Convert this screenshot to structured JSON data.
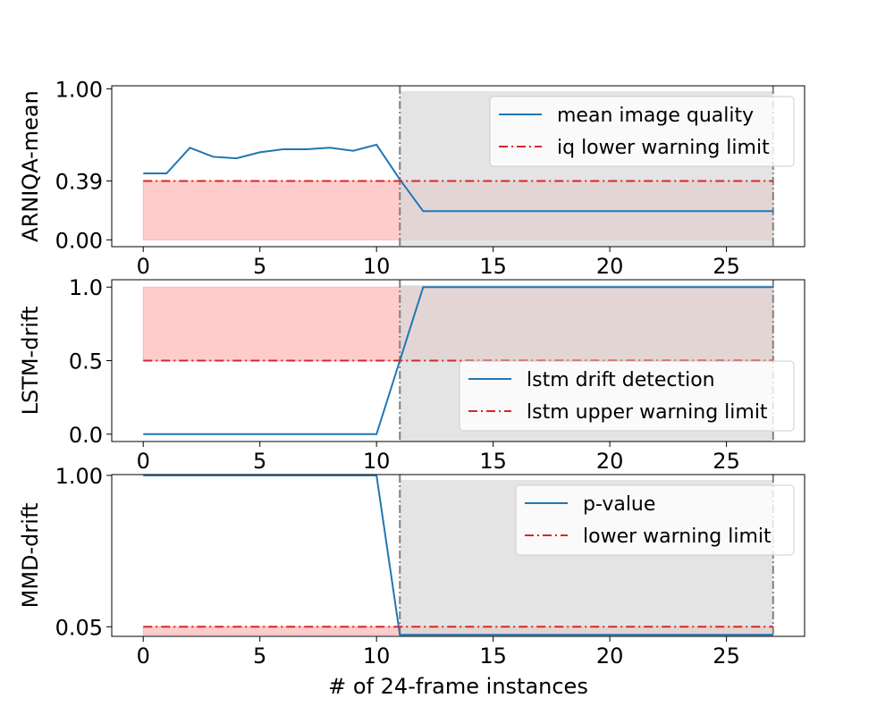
{
  "figure": {
    "xlabel": "# of 24-frame instances",
    "colors": {
      "series": "#1f77b4",
      "limit": "#d62728",
      "limit_fill": "#ff9999",
      "window_fill": "#d9d9d9",
      "vline": "#808080",
      "legend_edge": "#cccccc"
    }
  },
  "chart_data": [
    {
      "type": "line",
      "ylabel": "ARNIQA-mean",
      "xlim": [
        -1.35,
        28.35
      ],
      "ylim": [
        -0.045,
        1.02
      ],
      "xticks": [
        0,
        5,
        10,
        15,
        20,
        25
      ],
      "xtick_labels": [
        "0",
        "5",
        "10",
        "15",
        "20",
        "25"
      ],
      "yticks": [
        0.0,
        0.39,
        1.0
      ],
      "ytick_labels": [
        "0.00",
        "0.39",
        "1.00"
      ],
      "grid": false,
      "legend_placement": "top-right",
      "limit_fill": {
        "x_start": 0,
        "x_end": 27,
        "y_low": 0.0,
        "y_high": 0.39
      },
      "alert_window": {
        "x_start": 11,
        "x_end": 27
      },
      "series": [
        {
          "name": "mean image quality",
          "style": "solid",
          "x": [
            0,
            1,
            2,
            3,
            4,
            5,
            6,
            7,
            8,
            9,
            10,
            11,
            12,
            13,
            14,
            15,
            16,
            17,
            18,
            19,
            20,
            21,
            22,
            23,
            24,
            25,
            26,
            27
          ],
          "y": [
            0.44,
            0.44,
            0.61,
            0.55,
            0.54,
            0.58,
            0.6,
            0.6,
            0.61,
            0.59,
            0.63,
            0.4,
            0.19,
            0.19,
            0.19,
            0.19,
            0.19,
            0.19,
            0.19,
            0.19,
            0.19,
            0.19,
            0.19,
            0.19,
            0.19,
            0.19,
            0.19,
            0.19
          ]
        },
        {
          "name": "iq lower warning limit",
          "style": "dashdot",
          "x": [
            0,
            27
          ],
          "y": [
            0.39,
            0.39
          ]
        }
      ]
    },
    {
      "type": "line",
      "ylabel": "LSTM-drift",
      "xlim": [
        -1.35,
        28.35
      ],
      "ylim": [
        -0.05,
        1.05
      ],
      "xticks": [
        0,
        5,
        10,
        15,
        20,
        25
      ],
      "xtick_labels": [
        "0",
        "5",
        "10",
        "15",
        "20",
        "25"
      ],
      "yticks": [
        0.0,
        0.5,
        1.0
      ],
      "ytick_labels": [
        "0.0",
        "0.5",
        "1.0"
      ],
      "grid": false,
      "legend_placement": "lower-right",
      "limit_fill": {
        "x_start": 0,
        "x_end": 27,
        "y_low": 0.5,
        "y_high": 1.0
      },
      "alert_window": {
        "x_start": 11,
        "x_end": 27
      },
      "series": [
        {
          "name": "lstm drift detection",
          "style": "solid",
          "x": [
            0,
            1,
            2,
            3,
            4,
            5,
            6,
            7,
            8,
            9,
            10,
            11,
            12,
            13,
            14,
            15,
            16,
            17,
            18,
            19,
            20,
            21,
            22,
            23,
            24,
            25,
            26,
            27
          ],
          "y": [
            0,
            0,
            0,
            0,
            0,
            0,
            0,
            0,
            0,
            0,
            0,
            0.5,
            1,
            1,
            1,
            1,
            1,
            1,
            1,
            1,
            1,
            1,
            1,
            1,
            1,
            1,
            1,
            1
          ]
        },
        {
          "name": "lstm upper warning limit",
          "style": "dashdot",
          "x": [
            0,
            27
          ],
          "y": [
            0.5,
            0.5
          ]
        }
      ]
    },
    {
      "type": "line",
      "ylabel": "MMD-drift",
      "xlim": [
        -1.35,
        28.35
      ],
      "ylim": [
        -0.01,
        1.005
      ],
      "xticks": [
        0,
        5,
        10,
        15,
        20,
        25
      ],
      "xtick_labels": [
        "0",
        "5",
        "10",
        "15",
        "20",
        "25"
      ],
      "yticks": [
        0.05,
        1.0
      ],
      "ytick_labels": [
        "0.05",
        "1.00"
      ],
      "grid": false,
      "legend_placement": "top-right",
      "limit_fill": {
        "x_start": 0,
        "x_end": 27,
        "y_low": 0.0,
        "y_high": 0.05
      },
      "alert_window": {
        "x_start": 11,
        "x_end": 27
      },
      "series": [
        {
          "name": "p-value",
          "style": "solid",
          "x": [
            0,
            1,
            2,
            3,
            4,
            5,
            6,
            7,
            8,
            9,
            10,
            11,
            12,
            13,
            14,
            15,
            16,
            17,
            18,
            19,
            20,
            21,
            22,
            23,
            24,
            25,
            26,
            27
          ],
          "y": [
            1,
            1,
            1,
            1,
            1,
            1,
            1,
            1,
            1,
            1,
            1,
            0.0,
            0.0,
            0.0,
            0.0,
            0.0,
            0.0,
            0.0,
            0.0,
            0.0,
            0.0,
            0.0,
            0.0,
            0.0,
            0.0,
            0.0,
            0.0,
            0.0
          ]
        },
        {
          "name": "lower warning limit",
          "style": "dashdot",
          "x": [
            0,
            27
          ],
          "y": [
            0.05,
            0.05
          ]
        }
      ]
    }
  ]
}
